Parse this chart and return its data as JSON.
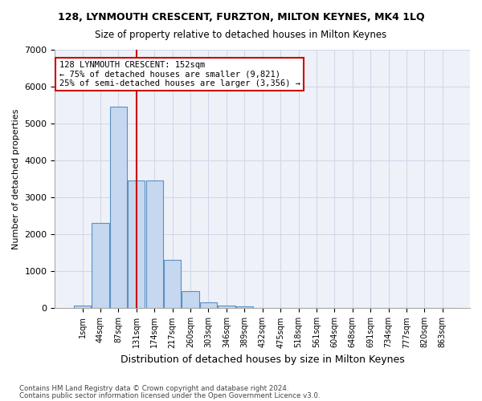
{
  "title": "128, LYNMOUTH CRESCENT, FURZTON, MILTON KEYNES, MK4 1LQ",
  "subtitle": "Size of property relative to detached houses in Milton Keynes",
  "xlabel": "Distribution of detached houses by size in Milton Keynes",
  "ylabel": "Number of detached properties",
  "footnote1": "Contains HM Land Registry data © Crown copyright and database right 2024.",
  "footnote2": "Contains public sector information licensed under the Open Government Licence v3.0.",
  "bar_color": "#c5d8f0",
  "bar_edge_color": "#5a8fc2",
  "grid_color": "#d0d8e8",
  "background_color": "#eef2f8",
  "bins": [
    "1sqm",
    "44sqm",
    "87sqm",
    "131sqm",
    "174sqm",
    "217sqm",
    "260sqm",
    "303sqm",
    "346sqm",
    "389sqm",
    "432sqm",
    "475sqm",
    "518sqm",
    "561sqm",
    "604sqm",
    "648sqm",
    "691sqm",
    "734sqm",
    "777sqm",
    "820sqm",
    "863sqm"
  ],
  "values": [
    75,
    2300,
    5450,
    3450,
    3450,
    1320,
    460,
    155,
    80,
    50,
    0,
    0,
    0,
    0,
    0,
    0,
    0,
    0,
    0,
    0,
    0
  ],
  "ylim": [
    0,
    7000
  ],
  "yticks": [
    0,
    1000,
    2000,
    3000,
    4000,
    5000,
    6000,
    7000
  ],
  "annotation_line1": "128 LYNMOUTH CRESCENT: 152sqm",
  "annotation_line2": "← 75% of detached houses are smaller (9,821)",
  "annotation_line3": "25% of semi-detached houses are larger (3,356) →",
  "annotation_box_color": "#ffffff",
  "annotation_box_edge_color": "#cc0000",
  "vline_color": "#cc0000"
}
